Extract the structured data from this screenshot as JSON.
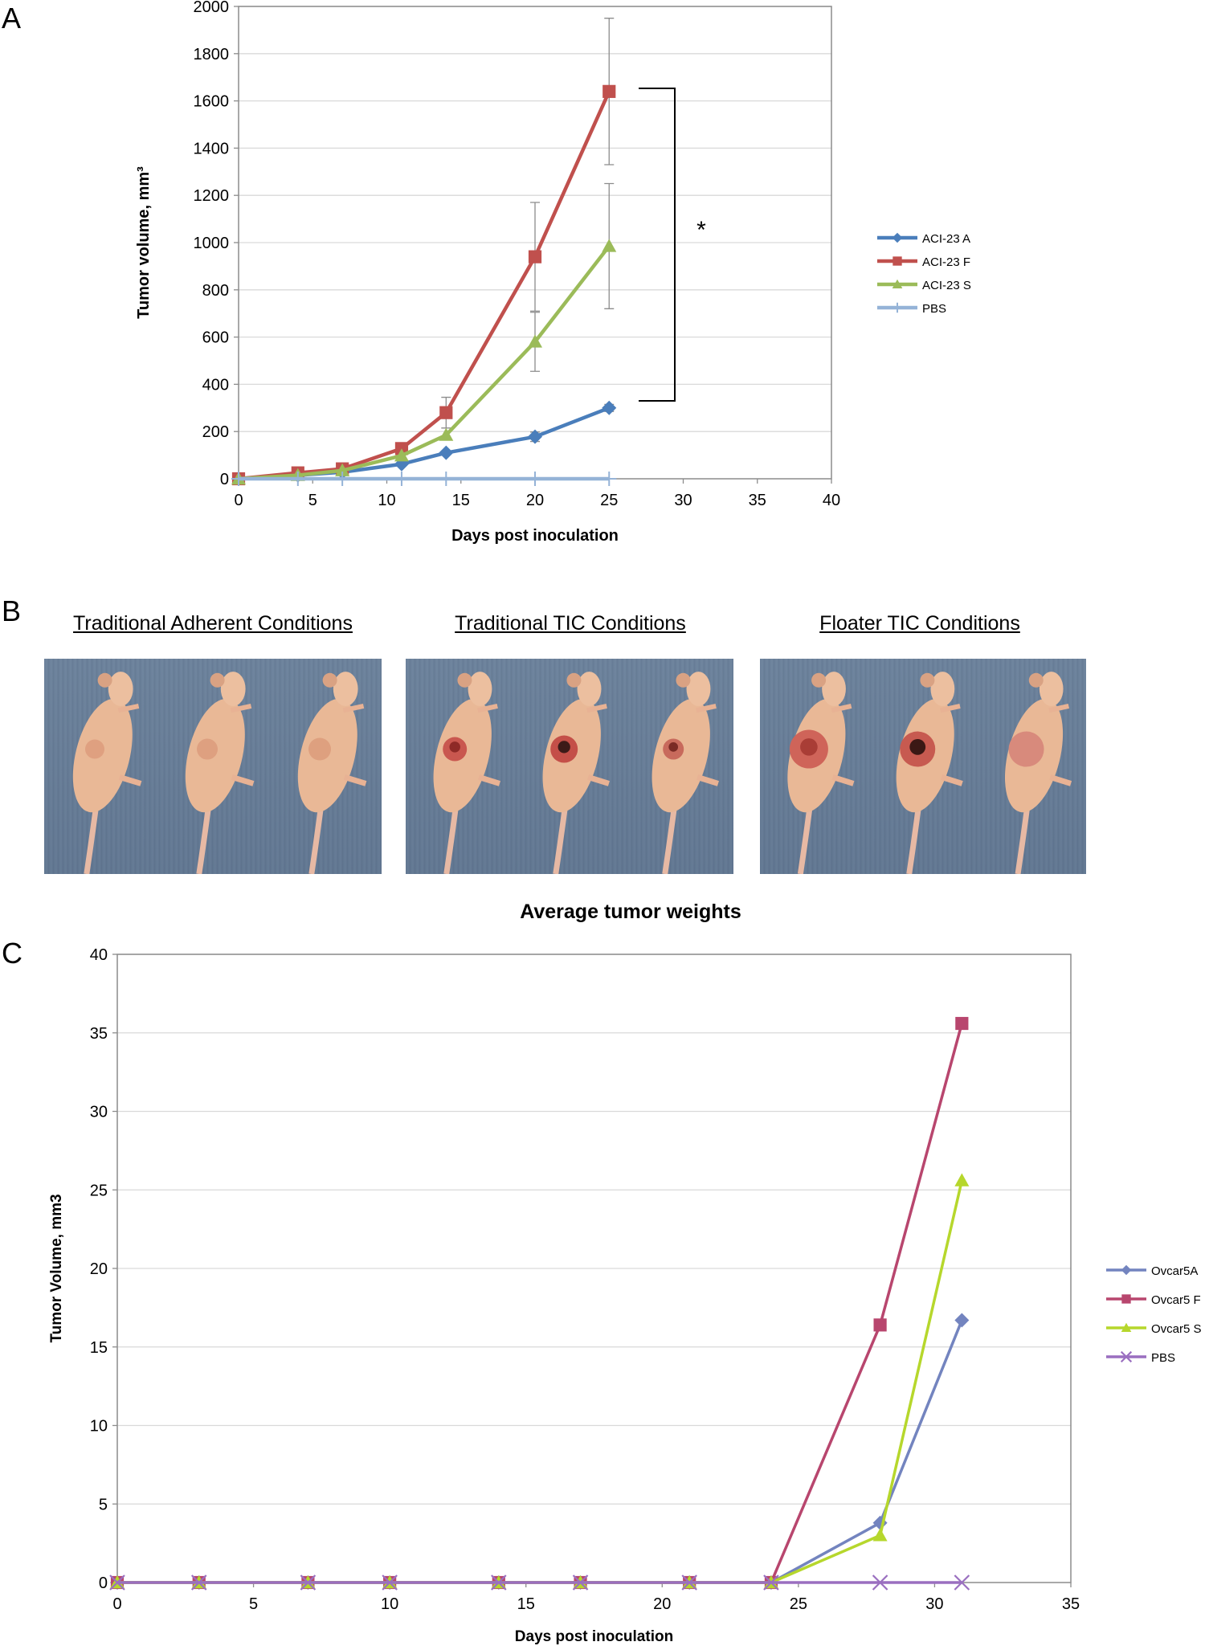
{
  "panels": {
    "a": "A",
    "b": "B",
    "c": "C"
  },
  "chart_data": [
    {
      "type": "line",
      "id": "A",
      "title": "",
      "xlabel": "Days post inoculation",
      "ylabel": "Tumor volume, mm³",
      "xlim": [
        0,
        40
      ],
      "ylim": [
        0,
        2000
      ],
      "x_ticks": [
        0,
        5,
        10,
        15,
        20,
        25,
        30,
        35,
        40
      ],
      "y_ticks": [
        0,
        200,
        400,
        600,
        800,
        1000,
        1200,
        1400,
        1600,
        1800,
        2000
      ],
      "grid": "horizontal",
      "legend": "right",
      "annotation": "*",
      "series": [
        {
          "name": "ACI-23 A",
          "color": "#4a7ebb",
          "marker": "diamond",
          "x": [
            0,
            4,
            7,
            11,
            14,
            20,
            25
          ],
          "y": [
            0,
            15,
            28,
            62,
            110,
            178,
            300
          ],
          "err": [
            0,
            0,
            0,
            0,
            0,
            20,
            15
          ]
        },
        {
          "name": "ACI-23 F",
          "color": "#c0504d",
          "marker": "square",
          "x": [
            0,
            4,
            7,
            11,
            14,
            20,
            25
          ],
          "y": [
            0,
            25,
            42,
            128,
            280,
            940,
            1640
          ],
          "err": [
            0,
            0,
            0,
            0,
            65,
            230,
            310
          ]
        },
        {
          "name": "ACI-23 S",
          "color": "#9bbb59",
          "marker": "triangle",
          "x": [
            0,
            4,
            7,
            11,
            14,
            20,
            25
          ],
          "y": [
            0,
            15,
            35,
            98,
            185,
            580,
            985
          ],
          "err": [
            0,
            0,
            0,
            0,
            0,
            125,
            265
          ]
        },
        {
          "name": "PBS",
          "color": "#95b3d7",
          "marker": "plus",
          "x": [
            0,
            4,
            7,
            11,
            14,
            20,
            25
          ],
          "y": [
            0,
            0,
            0,
            0,
            0,
            0,
            0
          ],
          "err": [
            0,
            0,
            0,
            0,
            0,
            0,
            0
          ]
        }
      ]
    },
    {
      "type": "line",
      "id": "C",
      "title": "Average tumor weights",
      "xlabel": "Days post inoculation",
      "ylabel": "Tumor Volume, mm3",
      "xlim": [
        0,
        35
      ],
      "ylim": [
        0,
        40
      ],
      "x_ticks": [
        0,
        5,
        10,
        15,
        20,
        25,
        30,
        35
      ],
      "y_ticks": [
        0,
        5,
        10,
        15,
        20,
        25,
        30,
        35,
        40
      ],
      "grid": "horizontal",
      "legend": "right",
      "series": [
        {
          "name": "Ovcar5A",
          "color": "#7384bf",
          "marker": "diamond",
          "x": [
            0,
            3,
            7,
            10,
            14,
            17,
            21,
            24,
            28,
            31
          ],
          "y": [
            0,
            0,
            0,
            0,
            0,
            0,
            0,
            0,
            3.8,
            16.7
          ]
        },
        {
          "name": "Ovcar5 F",
          "color": "#b8466e",
          "marker": "square",
          "x": [
            0,
            3,
            7,
            10,
            14,
            17,
            21,
            24,
            28,
            31
          ],
          "y": [
            0,
            0,
            0,
            0,
            0,
            0,
            0,
            0,
            16.4,
            35.6
          ]
        },
        {
          "name": "Ovcar5 S",
          "color": "#b6d72c",
          "marker": "triangle",
          "x": [
            0,
            3,
            7,
            10,
            14,
            17,
            21,
            24,
            28,
            31
          ],
          "y": [
            0,
            0,
            0,
            0,
            0,
            0,
            0,
            0,
            3.0,
            25.6
          ]
        },
        {
          "name": "PBS",
          "color": "#9a6fc0",
          "marker": "x",
          "x": [
            0,
            3,
            7,
            10,
            14,
            17,
            21,
            24,
            28,
            31
          ],
          "y": [
            0,
            0,
            0,
            0,
            0,
            0,
            0,
            0,
            0,
            0
          ]
        }
      ]
    }
  ],
  "photos": {
    "titles": [
      "Traditional Adherent Conditions",
      "Traditional TIC Conditions",
      "Floater TIC Conditions"
    ]
  }
}
